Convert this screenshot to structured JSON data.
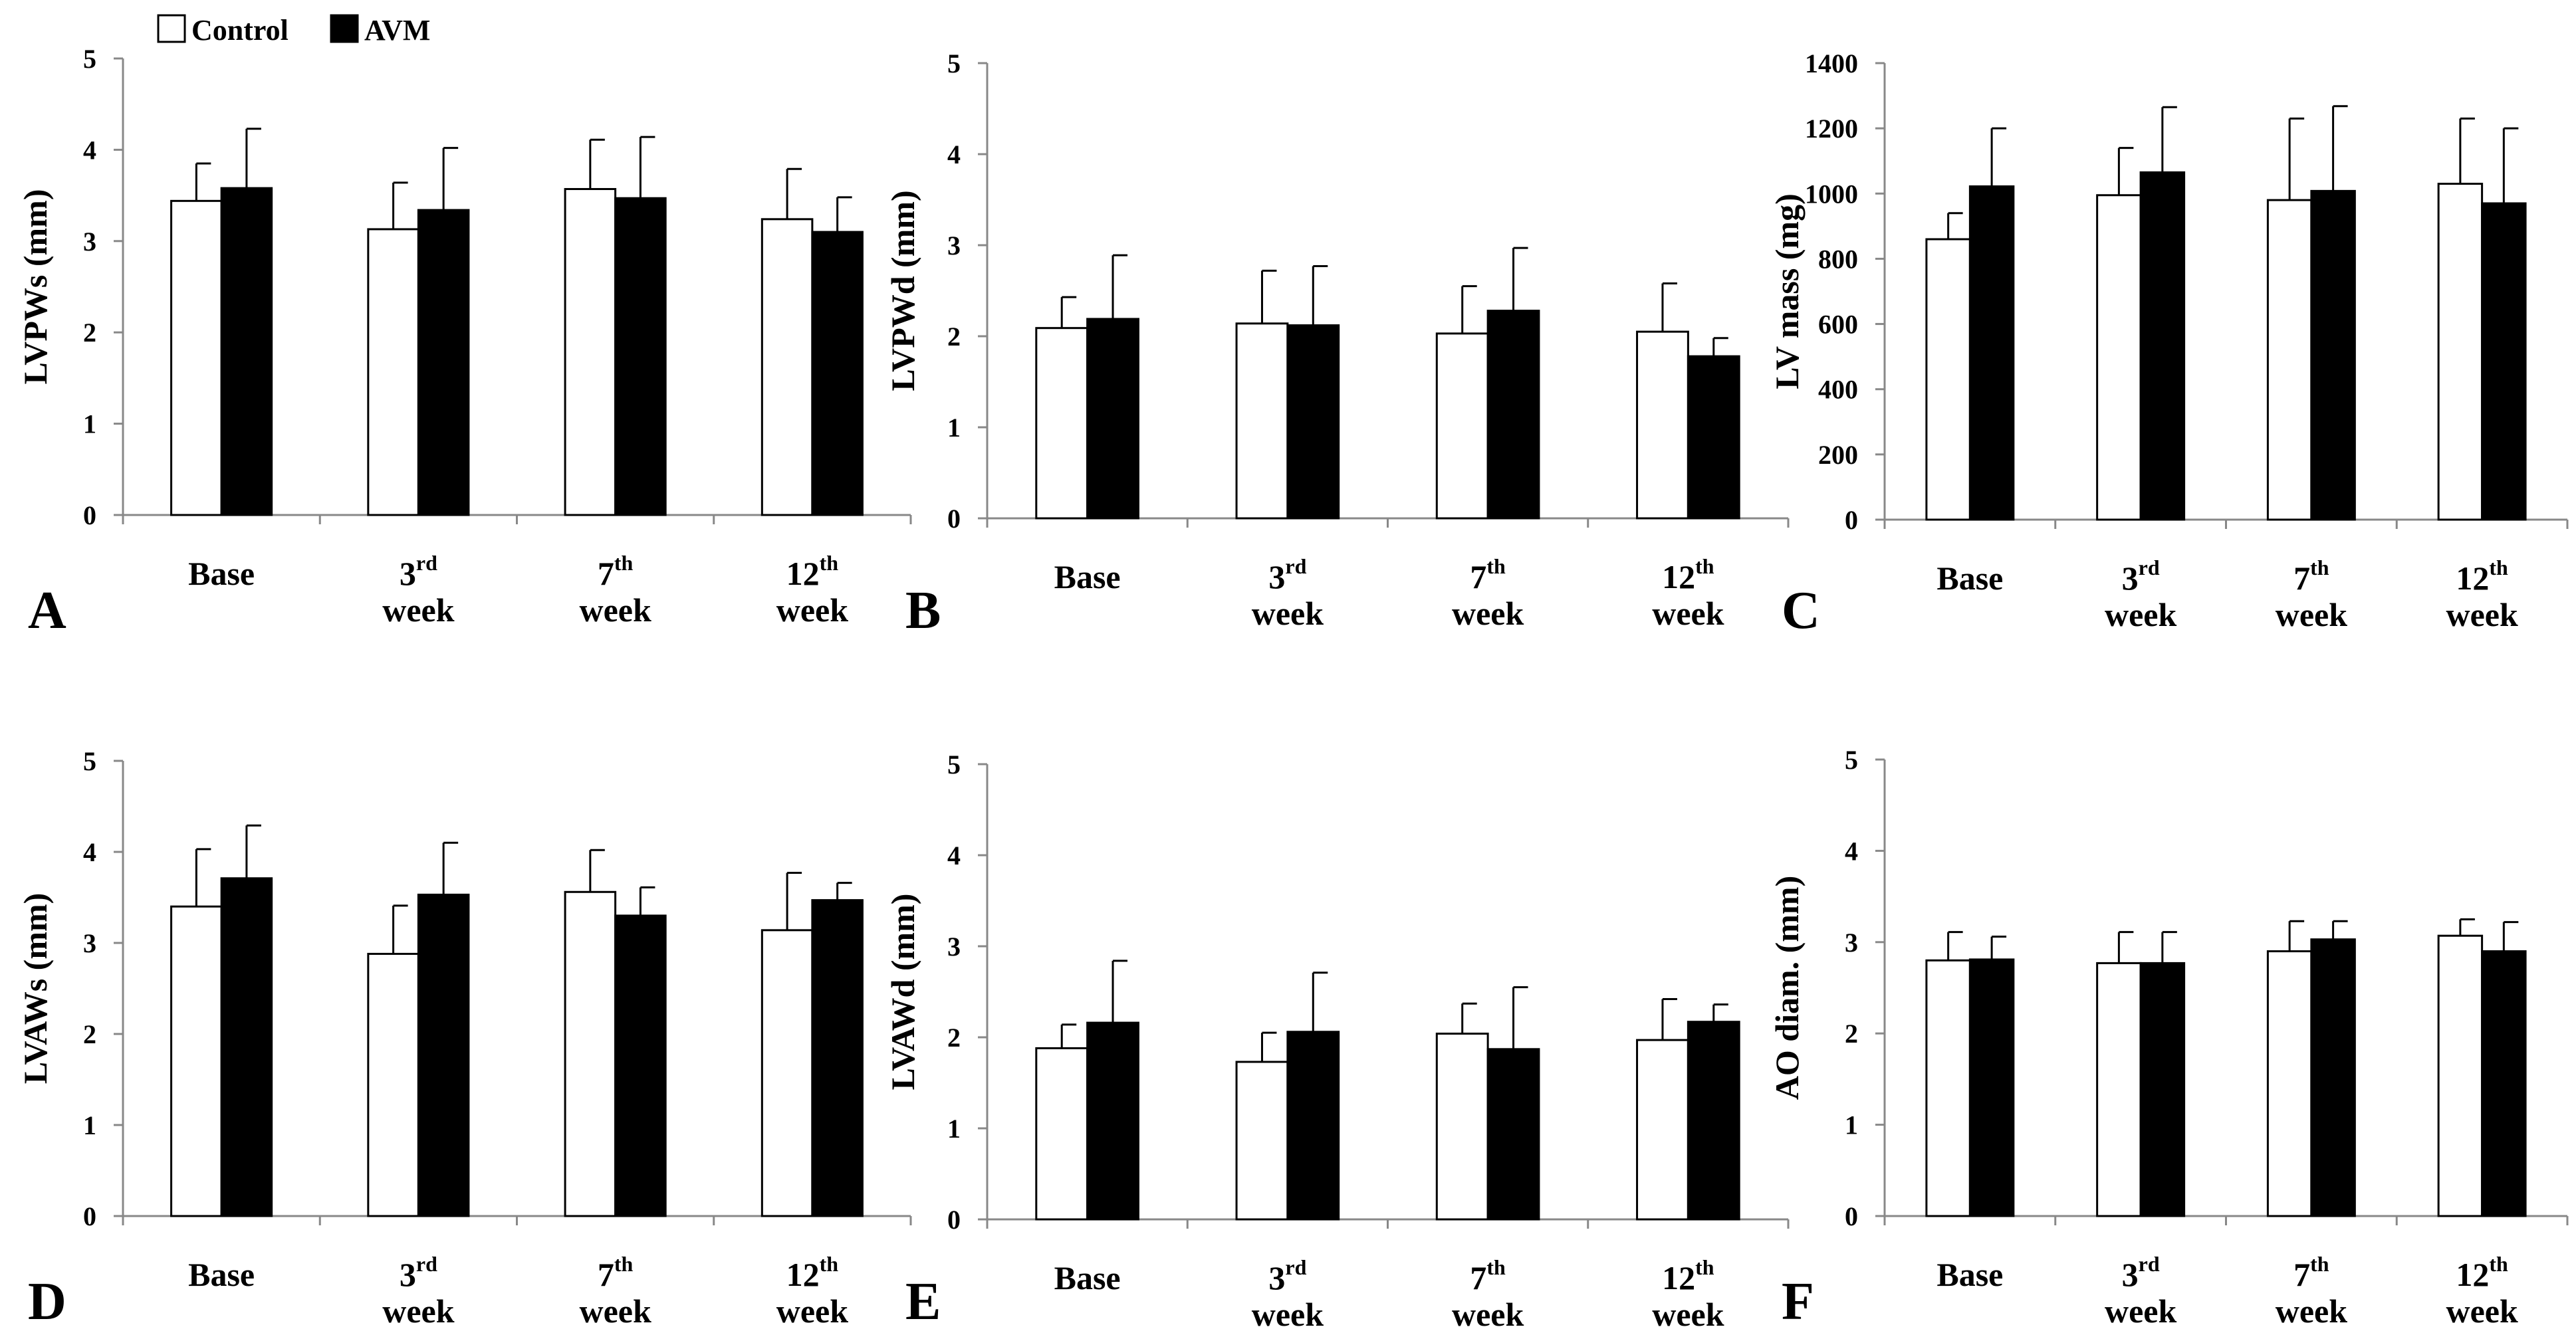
{
  "legend": {
    "items": [
      {
        "label": "Control",
        "color": "#ffffff"
      },
      {
        "label": "AVM",
        "color": "#000000"
      }
    ]
  },
  "colors": {
    "control": "#ffffff",
    "avm": "#000000",
    "axis": "#888888",
    "stroke": "#000000"
  },
  "chart_data": [
    {
      "type": "bar",
      "panel": "A",
      "ylabel": "LVPWs (mm)",
      "ylim": [
        0,
        5
      ],
      "yticks": [
        "0",
        "1",
        "2",
        "3",
        "4",
        "5"
      ],
      "categories": [
        {
          "main": "Base",
          "sup": "",
          "second": ""
        },
        {
          "main": "3",
          "sup": "rd",
          "second": "week"
        },
        {
          "main": "7",
          "sup": "th",
          "second": "week"
        },
        {
          "main": "12",
          "sup": "th",
          "second": "week"
        }
      ],
      "series": [
        {
          "name": "Control",
          "values": [
            3.44,
            3.13,
            3.57,
            3.24
          ],
          "errors": [
            0.41,
            0.51,
            0.54,
            0.55
          ]
        },
        {
          "name": "AVM",
          "values": [
            3.58,
            3.34,
            3.47,
            3.1
          ],
          "errors": [
            0.65,
            0.68,
            0.67,
            0.38
          ]
        }
      ]
    },
    {
      "type": "bar",
      "panel": "B",
      "ylabel": "LVPWd (mm)",
      "ylim": [
        0,
        5
      ],
      "yticks": [
        "0",
        "1",
        "2",
        "3",
        "4",
        "5"
      ],
      "categories": [
        {
          "main": "Base",
          "sup": "",
          "second": ""
        },
        {
          "main": "3",
          "sup": "rd",
          "second": "week"
        },
        {
          "main": "7",
          "sup": "th",
          "second": "week"
        },
        {
          "main": "12",
          "sup": "th",
          "second": "week"
        }
      ],
      "series": [
        {
          "name": "Control",
          "values": [
            2.09,
            2.14,
            2.03,
            2.05
          ],
          "errors": [
            0.34,
            0.58,
            0.52,
            0.53
          ]
        },
        {
          "name": "AVM",
          "values": [
            2.19,
            2.12,
            2.28,
            1.78
          ],
          "errors": [
            0.7,
            0.65,
            0.69,
            0.2
          ]
        }
      ]
    },
    {
      "type": "bar",
      "panel": "C",
      "ylabel": "LV mass (mg)",
      "ylim": [
        0,
        1400
      ],
      "yticks": [
        "0",
        "200",
        "400",
        "600",
        "800",
        "1000",
        "1200",
        "1400"
      ],
      "categories": [
        {
          "main": "Base",
          "sup": "",
          "second": ""
        },
        {
          "main": "3",
          "sup": "rd",
          "second": "week"
        },
        {
          "main": "7",
          "sup": "th",
          "second": "week"
        },
        {
          "main": "12",
          "sup": "th",
          "second": "week"
        }
      ],
      "series": [
        {
          "name": "Control",
          "values": [
            860,
            995,
            980,
            1030
          ],
          "errors": [
            80,
            145,
            250,
            200
          ]
        },
        {
          "name": "AVM",
          "values": [
            1022,
            1065,
            1008,
            970
          ],
          "errors": [
            178,
            200,
            260,
            230
          ]
        }
      ]
    },
    {
      "type": "bar",
      "panel": "D",
      "ylabel": "LVAWs (mm)",
      "ylim": [
        0,
        5
      ],
      "yticks": [
        "0",
        "1",
        "2",
        "3",
        "4",
        "5"
      ],
      "categories": [
        {
          "main": "Base",
          "sup": "",
          "second": ""
        },
        {
          "main": "3",
          "sup": "rd",
          "second": "week"
        },
        {
          "main": "7",
          "sup": "th",
          "second": "week"
        },
        {
          "main": "12",
          "sup": "th",
          "second": "week"
        }
      ],
      "series": [
        {
          "name": "Control",
          "values": [
            3.4,
            2.88,
            3.56,
            3.14
          ],
          "errors": [
            0.63,
            0.53,
            0.46,
            0.63
          ]
        },
        {
          "name": "AVM",
          "values": [
            3.71,
            3.53,
            3.3,
            3.47
          ],
          "errors": [
            0.58,
            0.57,
            0.31,
            0.19
          ]
        }
      ]
    },
    {
      "type": "bar",
      "panel": "E",
      "ylabel": "LVAWd (mm)",
      "ylim": [
        0,
        5
      ],
      "yticks": [
        "0",
        "1",
        "2",
        "3",
        "4",
        "5"
      ],
      "categories": [
        {
          "main": "Base",
          "sup": "",
          "second": ""
        },
        {
          "main": "3",
          "sup": "rd",
          "second": "week"
        },
        {
          "main": "7",
          "sup": "th",
          "second": "week"
        },
        {
          "main": "12",
          "sup": "th",
          "second": "week"
        }
      ],
      "series": [
        {
          "name": "Control",
          "values": [
            1.88,
            1.73,
            2.04,
            1.97
          ],
          "errors": [
            0.26,
            0.32,
            0.33,
            0.45
          ]
        },
        {
          "name": "AVM",
          "values": [
            2.16,
            2.06,
            1.87,
            2.17
          ],
          "errors": [
            0.68,
            0.65,
            0.68,
            0.19
          ]
        }
      ]
    },
    {
      "type": "bar",
      "panel": "F",
      "ylabel": "AO diam. (mm)",
      "ylim": [
        0,
        5
      ],
      "yticks": [
        "0",
        "1",
        "2",
        "3",
        "4",
        "5"
      ],
      "categories": [
        {
          "main": "Base",
          "sup": "",
          "second": ""
        },
        {
          "main": "3",
          "sup": "rd",
          "second": "week"
        },
        {
          "main": "7",
          "sup": "th",
          "second": "week"
        },
        {
          "main": "12",
          "sup": "th",
          "second": "week"
        }
      ],
      "series": [
        {
          "name": "Control",
          "values": [
            2.8,
            2.77,
            2.9,
            3.07
          ],
          "errors": [
            0.31,
            0.34,
            0.33,
            0.18
          ]
        },
        {
          "name": "AVM",
          "values": [
            2.81,
            2.77,
            3.03,
            2.9
          ],
          "errors": [
            0.25,
            0.34,
            0.2,
            0.32
          ]
        }
      ]
    }
  ]
}
